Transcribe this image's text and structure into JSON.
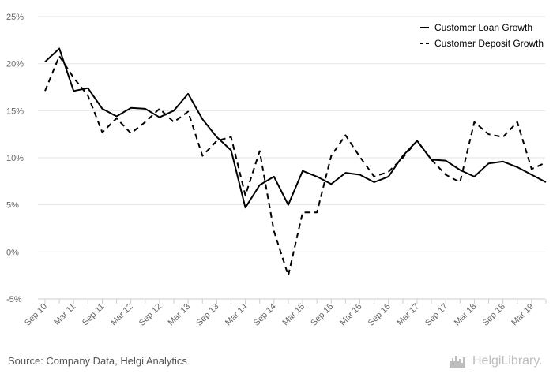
{
  "chart_data": {
    "type": "line",
    "title": "",
    "xlabel": "",
    "ylabel": "",
    "y_tick_labels": [
      "-5%",
      "0%",
      "5%",
      "10%",
      "15%",
      "20%",
      "25%"
    ],
    "y_ticks": [
      -5,
      0,
      5,
      10,
      15,
      20,
      25
    ],
    "ylim": [
      -5,
      25
    ],
    "grid": true,
    "legend_position": "top-right",
    "x_tick_labels": [
      "Sep 10",
      "Mar 11",
      "Sep 11",
      "Mar 12",
      "Sep 12",
      "Mar 13",
      "Sep 13",
      "Mar 14",
      "Sep 14",
      "Mar 15",
      "Sep 15",
      "Mar 16",
      "Sep 16",
      "Mar 17",
      "Sep 17",
      "Mar 18",
      "Sep 18",
      "Mar 19"
    ],
    "x": [
      "Sep 10",
      "Dec 10",
      "Mar 11",
      "Jun 11",
      "Sep 11",
      "Dec 11",
      "Mar 12",
      "Jun 12",
      "Sep 12",
      "Dec 12",
      "Mar 13",
      "Jun 13",
      "Sep 13",
      "Dec 13",
      "Mar 14",
      "Jun 14",
      "Sep 14",
      "Dec 14",
      "Mar 15",
      "Jun 15",
      "Sep 15",
      "Dec 15",
      "Mar 16",
      "Jun 16",
      "Sep 16",
      "Dec 16",
      "Mar 17",
      "Jun 17",
      "Sep 17",
      "Dec 17",
      "Mar 18",
      "Jun 18",
      "Sep 18",
      "Dec 18",
      "Mar 19",
      "Jun 19"
    ],
    "series": [
      {
        "name": "Customer Loan Growth",
        "style": "solid",
        "color": "#000000",
        "values": [
          20.2,
          21.6,
          17.1,
          17.4,
          15.2,
          14.4,
          15.3,
          15.2,
          14.3,
          15.0,
          16.8,
          14.1,
          12.2,
          10.8,
          4.7,
          7.1,
          8.0,
          5.0,
          8.6,
          8.0,
          7.2,
          8.4,
          8.2,
          7.4,
          8.0,
          10.2,
          11.8,
          9.8,
          9.7,
          8.7,
          8.0,
          9.4,
          9.6,
          9.0,
          8.2,
          7.4
        ]
      },
      {
        "name": "Customer Deposit Growth",
        "style": "dashed",
        "color": "#000000",
        "values": [
          17.1,
          20.8,
          18.5,
          16.6,
          12.7,
          14.2,
          12.6,
          13.8,
          15.2,
          13.8,
          14.9,
          10.2,
          11.8,
          12.2,
          6.0,
          10.7,
          2.2,
          -2.5,
          4.2,
          4.2,
          10.2,
          12.4,
          10.1,
          8.0,
          8.5,
          10.0,
          11.8,
          9.8,
          8.2,
          7.4,
          13.8,
          12.5,
          12.2,
          13.8,
          8.8,
          9.5
        ]
      }
    ]
  },
  "footer": {
    "source": "Source: Company Data, Helgi Analytics",
    "brand": "HelgiLibrary."
  }
}
